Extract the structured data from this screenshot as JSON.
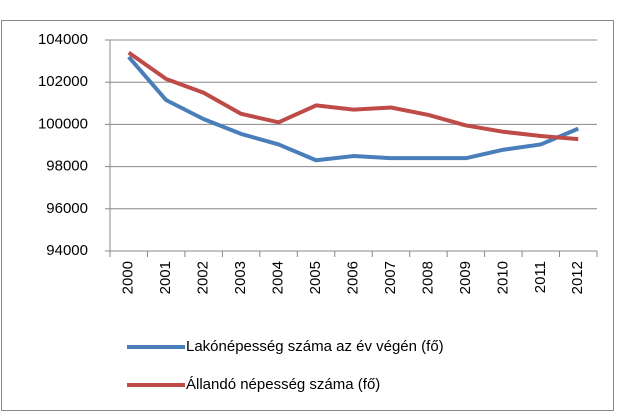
{
  "chart_data": {
    "type": "line",
    "categories": [
      "2000",
      "2001",
      "2002",
      "2003",
      "2004",
      "2005",
      "2006",
      "2007",
      "2008",
      "2009",
      "2010",
      "2011",
      "2012"
    ],
    "series": [
      {
        "name": "Lakónépesség száma az év végén (fő)",
        "color": "#4a7ebb",
        "values": [
          103200,
          101150,
          100250,
          99550,
          99050,
          98300,
          98500,
          98400,
          98400,
          98400,
          98800,
          99050,
          99800
        ]
      },
      {
        "name": "Állandó népesség száma (fő)",
        "color": "#be4b48",
        "values": [
          103400,
          102150,
          101500,
          100500,
          100100,
          100900,
          100700,
          100800,
          100450,
          99950,
          99650,
          99450,
          99300
        ]
      }
    ],
    "ylim": [
      94000,
      104000
    ],
    "yticks": [
      94000,
      96000,
      98000,
      100000,
      102000,
      104000
    ],
    "grid": true,
    "legend": "bottom"
  }
}
